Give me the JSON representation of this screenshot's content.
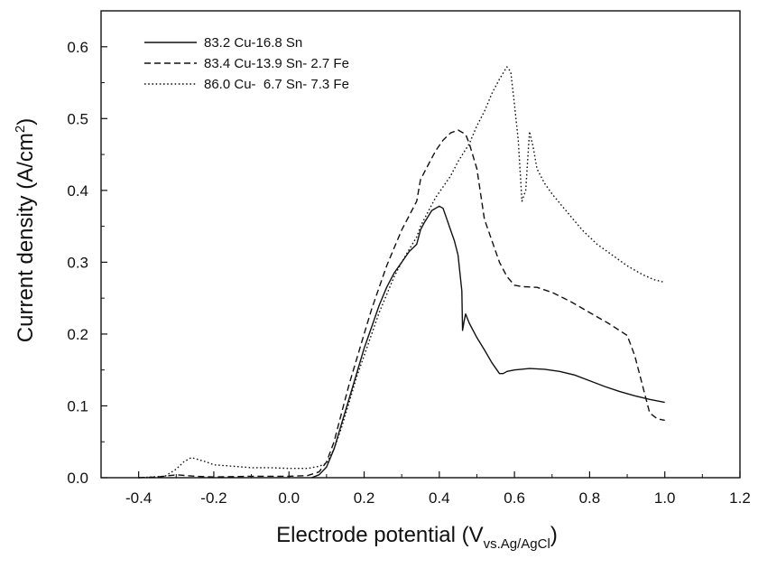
{
  "chart_data": {
    "type": "line",
    "xlabel": "Electrode potential (V",
    "xlabel_sub": "vs.Ag/AgCl",
    "xlabel_close": ")",
    "ylabel": "Current density (A/cm",
    "ylabel_sup": "2",
    "ylabel_close": ")",
    "xlim": [
      -0.5,
      1.2
    ],
    "ylim": [
      0,
      0.65
    ],
    "xticks": [
      -0.4,
      -0.2,
      0.0,
      0.2,
      0.4,
      0.6,
      0.8,
      1.0,
      1.2
    ],
    "xtick_labels": [
      "-0.4",
      "-0.2",
      "0.0",
      "0.2",
      "0.4",
      "0.6",
      "0.8",
      "1.0",
      "1.2"
    ],
    "yticks": [
      0.0,
      0.1,
      0.2,
      0.3,
      0.4,
      0.5,
      0.6
    ],
    "ytick_labels": [
      "0.0",
      "0.1",
      "0.2",
      "0.3",
      "0.4",
      "0.5",
      "0.6"
    ],
    "grid": false,
    "legend_position": "top-left",
    "series": [
      {
        "name": "83.2 Cu-16.8 Sn",
        "style": "solid",
        "points": [
          [
            0.06,
            0.0
          ],
          [
            0.08,
            0.004
          ],
          [
            0.1,
            0.015
          ],
          [
            0.12,
            0.04
          ],
          [
            0.14,
            0.075
          ],
          [
            0.16,
            0.11
          ],
          [
            0.18,
            0.145
          ],
          [
            0.2,
            0.18
          ],
          [
            0.22,
            0.21
          ],
          [
            0.24,
            0.24
          ],
          [
            0.26,
            0.265
          ],
          [
            0.28,
            0.285
          ],
          [
            0.3,
            0.3
          ],
          [
            0.32,
            0.315
          ],
          [
            0.34,
            0.325
          ],
          [
            0.35,
            0.345
          ],
          [
            0.36,
            0.355
          ],
          [
            0.38,
            0.372
          ],
          [
            0.4,
            0.378
          ],
          [
            0.41,
            0.375
          ],
          [
            0.42,
            0.36
          ],
          [
            0.43,
            0.345
          ],
          [
            0.44,
            0.33
          ],
          [
            0.45,
            0.31
          ],
          [
            0.455,
            0.285
          ],
          [
            0.46,
            0.26
          ],
          [
            0.462,
            0.205
          ],
          [
            0.466,
            0.218
          ],
          [
            0.47,
            0.228
          ],
          [
            0.48,
            0.215
          ],
          [
            0.5,
            0.195
          ],
          [
            0.52,
            0.178
          ],
          [
            0.54,
            0.16
          ],
          [
            0.56,
            0.145
          ],
          [
            0.57,
            0.145
          ],
          [
            0.58,
            0.148
          ],
          [
            0.6,
            0.15
          ],
          [
            0.64,
            0.152
          ],
          [
            0.68,
            0.151
          ],
          [
            0.72,
            0.148
          ],
          [
            0.76,
            0.143
          ],
          [
            0.8,
            0.135
          ],
          [
            0.84,
            0.127
          ],
          [
            0.88,
            0.12
          ],
          [
            0.92,
            0.114
          ],
          [
            0.96,
            0.109
          ],
          [
            1.0,
            0.105
          ]
        ]
      },
      {
        "name": "83.4 Cu-13.9 Sn- 2.7 Fe",
        "style": "dashed",
        "points": [
          [
            -0.4,
            0.0
          ],
          [
            -0.35,
            0.001
          ],
          [
            -0.3,
            0.004
          ],
          [
            -0.25,
            0.002
          ],
          [
            -0.2,
            0.001
          ],
          [
            -0.1,
            0.002
          ],
          [
            0.0,
            0.002
          ],
          [
            0.05,
            0.003
          ],
          [
            0.08,
            0.008
          ],
          [
            0.1,
            0.022
          ],
          [
            0.12,
            0.05
          ],
          [
            0.14,
            0.09
          ],
          [
            0.16,
            0.13
          ],
          [
            0.18,
            0.165
          ],
          [
            0.2,
            0.2
          ],
          [
            0.22,
            0.235
          ],
          [
            0.24,
            0.265
          ],
          [
            0.26,
            0.295
          ],
          [
            0.28,
            0.32
          ],
          [
            0.3,
            0.345
          ],
          [
            0.32,
            0.365
          ],
          [
            0.34,
            0.385
          ],
          [
            0.35,
            0.415
          ],
          [
            0.37,
            0.435
          ],
          [
            0.39,
            0.455
          ],
          [
            0.41,
            0.47
          ],
          [
            0.43,
            0.48
          ],
          [
            0.45,
            0.484
          ],
          [
            0.47,
            0.478
          ],
          [
            0.48,
            0.465
          ],
          [
            0.5,
            0.43
          ],
          [
            0.52,
            0.36
          ],
          [
            0.54,
            0.33
          ],
          [
            0.56,
            0.3
          ],
          [
            0.58,
            0.28
          ],
          [
            0.6,
            0.268
          ],
          [
            0.62,
            0.266
          ],
          [
            0.66,
            0.265
          ],
          [
            0.7,
            0.258
          ],
          [
            0.75,
            0.245
          ],
          [
            0.8,
            0.23
          ],
          [
            0.85,
            0.215
          ],
          [
            0.9,
            0.198
          ],
          [
            0.92,
            0.17
          ],
          [
            0.94,
            0.13
          ],
          [
            0.96,
            0.09
          ],
          [
            0.98,
            0.082
          ],
          [
            1.0,
            0.08
          ]
        ]
      },
      {
        "name": "86.0 Cu-  6.7 Sn- 7.3 Fe",
        "style": "dotted",
        "points": [
          [
            -0.4,
            0.0
          ],
          [
            -0.33,
            0.002
          ],
          [
            -0.3,
            0.012
          ],
          [
            -0.28,
            0.022
          ],
          [
            -0.26,
            0.028
          ],
          [
            -0.24,
            0.025
          ],
          [
            -0.22,
            0.022
          ],
          [
            -0.2,
            0.018
          ],
          [
            -0.15,
            0.016
          ],
          [
            -0.1,
            0.014
          ],
          [
            -0.05,
            0.014
          ],
          [
            0.0,
            0.013
          ],
          [
            0.05,
            0.013
          ],
          [
            0.08,
            0.016
          ],
          [
            0.1,
            0.02
          ],
          [
            0.12,
            0.04
          ],
          [
            0.14,
            0.07
          ],
          [
            0.16,
            0.105
          ],
          [
            0.18,
            0.14
          ],
          [
            0.2,
            0.17
          ],
          [
            0.22,
            0.2
          ],
          [
            0.24,
            0.23
          ],
          [
            0.26,
            0.255
          ],
          [
            0.28,
            0.28
          ],
          [
            0.3,
            0.3
          ],
          [
            0.32,
            0.318
          ],
          [
            0.34,
            0.335
          ],
          [
            0.35,
            0.35
          ],
          [
            0.37,
            0.37
          ],
          [
            0.39,
            0.39
          ],
          [
            0.41,
            0.405
          ],
          [
            0.43,
            0.42
          ],
          [
            0.45,
            0.44
          ],
          [
            0.48,
            0.465
          ],
          [
            0.5,
            0.49
          ],
          [
            0.52,
            0.51
          ],
          [
            0.54,
            0.535
          ],
          [
            0.56,
            0.555
          ],
          [
            0.58,
            0.572
          ],
          [
            0.59,
            0.565
          ],
          [
            0.6,
            0.52
          ],
          [
            0.61,
            0.47
          ],
          [
            0.62,
            0.385
          ],
          [
            0.63,
            0.4
          ],
          [
            0.64,
            0.482
          ],
          [
            0.65,
            0.46
          ],
          [
            0.66,
            0.43
          ],
          [
            0.68,
            0.41
          ],
          [
            0.7,
            0.395
          ],
          [
            0.74,
            0.37
          ],
          [
            0.78,
            0.345
          ],
          [
            0.82,
            0.325
          ],
          [
            0.86,
            0.31
          ],
          [
            0.9,
            0.295
          ],
          [
            0.94,
            0.283
          ],
          [
            0.97,
            0.276
          ],
          [
            1.0,
            0.272
          ]
        ]
      }
    ]
  }
}
